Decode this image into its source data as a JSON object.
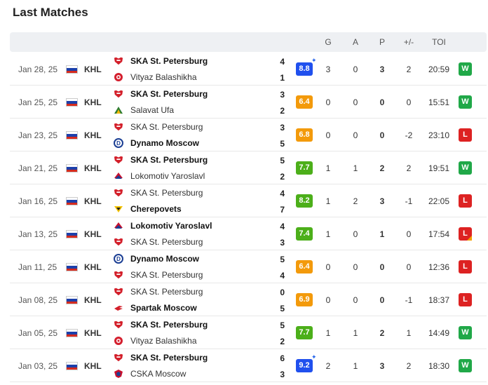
{
  "title": "Last Matches",
  "columns": {
    "g": "G",
    "a": "A",
    "p": "P",
    "pm": "+/-",
    "toi": "TOI"
  },
  "colors": {
    "win": "#20a848",
    "loss": "#dd2222",
    "rating_high": "#2050ee",
    "rating_good": "#4caf1a",
    "rating_mid": "#f39a0b",
    "ska_red": "#d31f2a"
  },
  "matches": [
    {
      "date": "Jan 28, 25",
      "league": "KHL",
      "home": "SKA St. Petersburg",
      "away": "Vityaz Balashikha",
      "home_score": "4",
      "away_score": "1",
      "rating": "8.8",
      "star": true,
      "g": "3",
      "a": "0",
      "p": "3",
      "pm": "2",
      "toi": "20:59",
      "result": "W"
    },
    {
      "date": "Jan 25, 25",
      "league": "KHL",
      "home": "SKA St. Petersburg",
      "away": "Salavat Ufa",
      "home_score": "3",
      "away_score": "2",
      "rating": "6.4",
      "star": false,
      "g": "0",
      "a": "0",
      "p": "0",
      "pm": "0",
      "toi": "15:51",
      "result": "W"
    },
    {
      "date": "Jan 23, 25",
      "league": "KHL",
      "home": "SKA St. Petersburg",
      "away": "Dynamo Moscow",
      "home_score": "3",
      "away_score": "5",
      "rating": "6.8",
      "star": false,
      "g": "0",
      "a": "0",
      "p": "0",
      "pm": "-2",
      "toi": "23:10",
      "result": "L"
    },
    {
      "date": "Jan 21, 25",
      "league": "KHL",
      "home": "SKA St. Petersburg",
      "away": "Lokomotiv Yaroslavl",
      "home_score": "5",
      "away_score": "2",
      "rating": "7.7",
      "star": false,
      "g": "1",
      "a": "1",
      "p": "2",
      "pm": "2",
      "toi": "19:51",
      "result": "W"
    },
    {
      "date": "Jan 16, 25",
      "league": "KHL",
      "home": "SKA St. Petersburg",
      "away": "Cherepovets",
      "home_score": "4",
      "away_score": "7",
      "rating": "8.2",
      "star": false,
      "g": "1",
      "a": "2",
      "p": "3",
      "pm": "-1",
      "toi": "22:05",
      "result": "L"
    },
    {
      "date": "Jan 13, 25",
      "league": "KHL",
      "home": "Lokomotiv Yaroslavl",
      "away": "SKA St. Petersburg",
      "home_score": "4",
      "away_score": "3",
      "rating": "7.4",
      "star": false,
      "g": "1",
      "a": "0",
      "p": "1",
      "pm": "0",
      "toi": "17:54",
      "result": "L"
    },
    {
      "date": "Jan 11, 25",
      "league": "KHL",
      "home": "Dynamo Moscow",
      "away": "SKA St. Petersburg",
      "home_score": "5",
      "away_score": "4",
      "rating": "6.4",
      "star": false,
      "g": "0",
      "a": "0",
      "p": "0",
      "pm": "0",
      "toi": "12:36",
      "result": "L"
    },
    {
      "date": "Jan 08, 25",
      "league": "KHL",
      "home": "SKA St. Petersburg",
      "away": "Spartak Moscow",
      "home_score": "0",
      "away_score": "5",
      "rating": "6.9",
      "star": false,
      "g": "0",
      "a": "0",
      "p": "0",
      "pm": "-1",
      "toi": "18:37",
      "result": "L"
    },
    {
      "date": "Jan 05, 25",
      "league": "KHL",
      "home": "SKA St. Petersburg",
      "away": "Vityaz Balashikha",
      "home_score": "5",
      "away_score": "2",
      "rating": "7.7",
      "star": false,
      "g": "1",
      "a": "1",
      "p": "2",
      "pm": "1",
      "toi": "14:49",
      "result": "W"
    },
    {
      "date": "Jan 03, 25",
      "league": "KHL",
      "home": "SKA St. Petersburg",
      "away": "CSKA Moscow",
      "home_score": "6",
      "away_score": "3",
      "rating": "9.2",
      "star": true,
      "g": "2",
      "a": "1",
      "p": "3",
      "pm": "2",
      "toi": "18:30",
      "result": "W"
    }
  ]
}
